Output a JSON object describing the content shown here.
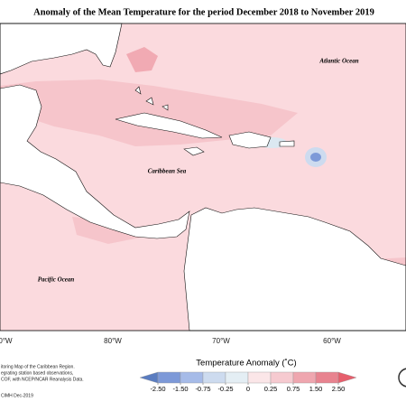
{
  "title": "Anomaly of the Mean Temperature for the period December 2018 to November 2019",
  "oceans": [
    "Atlantic Ocean",
    "Caribbean Sea",
    "Pacific Ocean"
  ],
  "longitudes": [
    "0°W",
    "80°W",
    "70°W",
    "60°W"
  ],
  "legend": {
    "title": "Temperature Anomaly (˚C)",
    "ticks": [
      {
        "value": -2.5,
        "label": "-2.50"
      },
      {
        "value": -1.5,
        "label": "-1.50"
      },
      -0.75,
      -0.25,
      0,
      0.25,
      0.75,
      {
        "value": 1.5,
        "label": "1.50"
      },
      {
        "value": 2.5,
        "label": "2.50"
      }
    ],
    "colors": [
      "#5a7cc0",
      "#7d99d8",
      "#a6bbe8",
      "#cddbef",
      "#e4eef4",
      "#fbe6e8",
      "#f6cad0",
      "#efa6af",
      "#e8838f",
      "#e65e6c"
    ]
  },
  "credits": [
    "itoring Map of the Caribbean Region.",
    "egrating station based observations,",
    "COF, with NCEP/NCAR Reanalysis Data.",
    "CIMH Dec-2019"
  ]
}
